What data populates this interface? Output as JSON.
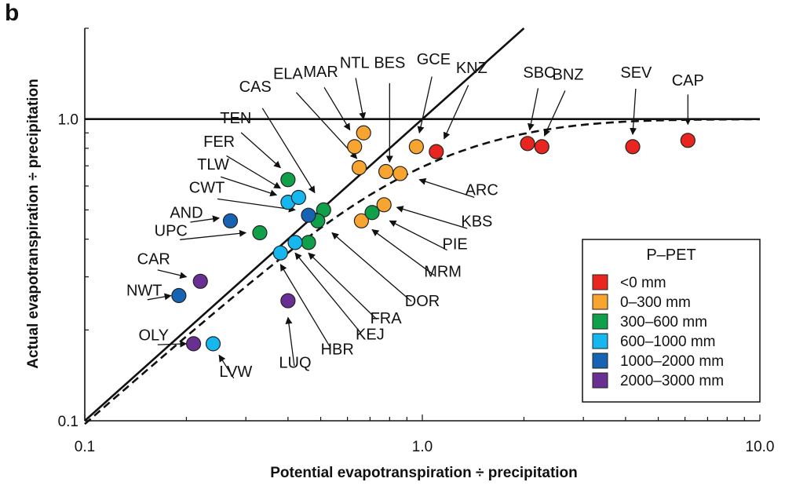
{
  "panel_label": "b",
  "colors": {
    "<0 mm": "#e8251f",
    "0–300 mm": "#f7a431",
    "300–600 mm": "#11a04a",
    "600–1000 mm": "#16b7ee",
    "1000–2000 mm": "#1763b3",
    "2000–3000 mm": "#6a2f93"
  },
  "chart_data": {
    "type": "scatter",
    "xlabel": "Potential evapotranspiration ÷ precipitation",
    "ylabel": "Actual evapotranspiration ÷ precipitation",
    "xscale": "log",
    "yscale": "log",
    "xlim": [
      0.1,
      10.0
    ],
    "ylim": [
      0.1,
      2.0
    ],
    "xticks": [
      "0.1",
      "1.0",
      "10.0"
    ],
    "yticks": [
      "0.1",
      "1.0"
    ],
    "legend_title": "P–PET",
    "legend_position": "bottom-right",
    "legend": [
      "<0 mm",
      "0–300 mm",
      "300–600 mm",
      "600–1000 mm",
      "1000–2000 mm",
      "2000–3000 mm"
    ],
    "reference_lines": [
      {
        "name": "1:1 line",
        "style": "solid"
      },
      {
        "name": "y = 1.0",
        "style": "solid"
      },
      {
        "name": "Budyko curve",
        "style": "dashed"
      }
    ],
    "points": [
      {
        "x": 6.12,
        "y": 0.85,
        "group": "<0 mm"
      },
      {
        "x": 4.2,
        "y": 0.81,
        "group": "<0 mm"
      },
      {
        "x": 2.26,
        "y": 0.81,
        "group": "<0 mm"
      },
      {
        "x": 2.05,
        "y": 0.83,
        "group": "<0 mm"
      },
      {
        "x": 1.1,
        "y": 0.78,
        "group": "<0 mm"
      },
      {
        "x": 0.63,
        "y": 0.81,
        "group": "0–300 mm"
      },
      {
        "x": 0.67,
        "y": 0.9,
        "group": "0–300 mm"
      },
      {
        "x": 0.96,
        "y": 0.81,
        "group": "0–300 mm"
      },
      {
        "x": 0.65,
        "y": 0.69,
        "group": "0–300 mm"
      },
      {
        "x": 0.78,
        "y": 0.67,
        "group": "0–300 mm"
      },
      {
        "x": 0.86,
        "y": 0.66,
        "group": "0–300 mm"
      },
      {
        "x": 0.77,
        "y": 0.52,
        "group": "0–300 mm"
      },
      {
        "x": 0.66,
        "y": 0.46,
        "group": "0–300 mm"
      },
      {
        "x": 0.4,
        "y": 0.63,
        "group": "300–600 mm"
      },
      {
        "x": 0.51,
        "y": 0.5,
        "group": "300–600 mm"
      },
      {
        "x": 0.49,
        "y": 0.46,
        "group": "300–600 mm"
      },
      {
        "x": 0.71,
        "y": 0.49,
        "group": "300–600 mm"
      },
      {
        "x": 0.33,
        "y": 0.42,
        "group": "300–600 mm"
      },
      {
        "x": 0.46,
        "y": 0.39,
        "group": "300–600 mm"
      },
      {
        "x": 0.4,
        "y": 0.53,
        "group": "600–1000 mm"
      },
      {
        "x": 0.43,
        "y": 0.55,
        "group": "600–1000 mm"
      },
      {
        "x": 0.42,
        "y": 0.39,
        "group": "600–1000 mm"
      },
      {
        "x": 0.38,
        "y": 0.36,
        "group": "600–1000 mm"
      },
      {
        "x": 0.24,
        "y": 0.18,
        "group": "600–1000 mm"
      },
      {
        "x": 0.27,
        "y": 0.46,
        "group": "1000–2000 mm"
      },
      {
        "x": 0.46,
        "y": 0.48,
        "group": "1000–2000 mm"
      },
      {
        "x": 0.19,
        "y": 0.26,
        "group": "1000–2000 mm"
      },
      {
        "x": 0.22,
        "y": 0.29,
        "group": "2000–3000 mm"
      },
      {
        "x": 0.4,
        "y": 0.25,
        "group": "2000–3000 mm"
      },
      {
        "x": 0.21,
        "y": 0.18,
        "group": "2000–3000 mm"
      }
    ],
    "annotations": [
      {
        "label": "CAP",
        "text_x": 6.12,
        "text_y": 1.29,
        "arrow_x": 6.12,
        "arrow_y": 0.96
      },
      {
        "label": "SEV",
        "text_x": 4.3,
        "text_y": 1.37,
        "arrow_x": 4.2,
        "arrow_y": 0.89
      },
      {
        "label": "BNZ",
        "text_x": 2.7,
        "text_y": 1.35,
        "arrow_x": 2.3,
        "arrow_y": 0.88
      },
      {
        "label": "SBC",
        "text_x": 2.22,
        "text_y": 1.37,
        "arrow_x": 2.08,
        "arrow_y": 0.92
      },
      {
        "label": "KNZ",
        "text_x": 1.4,
        "text_y": 1.42,
        "arrow_x": 1.16,
        "arrow_y": 0.86
      },
      {
        "label": "GCE",
        "text_x": 1.08,
        "text_y": 1.52,
        "arrow_x": 0.98,
        "arrow_y": 0.9
      },
      {
        "label": "BES",
        "text_x": 0.8,
        "text_y": 1.48,
        "arrow_x": 0.8,
        "arrow_y": 0.72
      },
      {
        "label": "NTL",
        "text_x": 0.63,
        "text_y": 1.48,
        "arrow_x": 0.67,
        "arrow_y": 1.0
      },
      {
        "label": "MAR",
        "text_x": 0.5,
        "text_y": 1.38,
        "arrow_x": 0.61,
        "arrow_y": 0.92
      },
      {
        "label": "ELA",
        "text_x": 0.4,
        "text_y": 1.36,
        "arrow_x": 0.64,
        "arrow_y": 0.74
      },
      {
        "label": "CAS",
        "text_x": 0.32,
        "text_y": 1.23,
        "arrow_x": 0.48,
        "arrow_y": 0.57
      },
      {
        "label": "TEN",
        "text_x": 0.28,
        "text_y": 0.97,
        "arrow_x": 0.38,
        "arrow_y": 0.69
      },
      {
        "label": "FER",
        "text_x": 0.25,
        "text_y": 0.81,
        "arrow_x": 0.38,
        "arrow_y": 0.59
      },
      {
        "label": "TLW",
        "text_x": 0.24,
        "text_y": 0.68,
        "arrow_x": 0.37,
        "arrow_y": 0.56
      },
      {
        "label": "CWT",
        "text_x": 0.23,
        "text_y": 0.57,
        "arrow_x": 0.42,
        "arrow_y": 0.5
      },
      {
        "label": "AND",
        "text_x": 0.2,
        "text_y": 0.47,
        "arrow_x": 0.25,
        "arrow_y": 0.47
      },
      {
        "label": "UPC",
        "text_x": 0.18,
        "text_y": 0.41,
        "arrow_x": 0.3,
        "arrow_y": 0.42
      },
      {
        "label": "CAR",
        "text_x": 0.16,
        "text_y": 0.33,
        "arrow_x": 0.2,
        "arrow_y": 0.3
      },
      {
        "label": "NWT",
        "text_x": 0.15,
        "text_y": 0.26,
        "arrow_x": 0.18,
        "arrow_y": 0.26
      },
      {
        "label": "OLY",
        "text_x": 0.16,
        "text_y": 0.185,
        "arrow_x": 0.2,
        "arrow_y": 0.18
      },
      {
        "label": "LVW",
        "text_x": 0.28,
        "text_y": 0.14,
        "arrow_x": 0.25,
        "arrow_y": 0.165
      },
      {
        "label": "LUQ",
        "text_x": 0.42,
        "text_y": 0.15,
        "arrow_x": 0.4,
        "arrow_y": 0.22
      },
      {
        "label": "HBR",
        "text_x": 0.56,
        "text_y": 0.166,
        "arrow_x": 0.38,
        "arrow_y": 0.33
      },
      {
        "label": "KEJ",
        "text_x": 0.7,
        "text_y": 0.186,
        "arrow_x": 0.42,
        "arrow_y": 0.36
      },
      {
        "label": "FRA",
        "text_x": 0.78,
        "text_y": 0.21,
        "arrow_x": 0.46,
        "arrow_y": 0.36
      },
      {
        "label": "DOR",
        "text_x": 1.0,
        "text_y": 0.24,
        "arrow_x": 0.54,
        "arrow_y": 0.42
      },
      {
        "label": "MRM",
        "text_x": 1.15,
        "text_y": 0.3,
        "arrow_x": 0.71,
        "arrow_y": 0.43
      },
      {
        "label": "PIE",
        "text_x": 1.25,
        "text_y": 0.37,
        "arrow_x": 0.8,
        "arrow_y": 0.46
      },
      {
        "label": "KBS",
        "text_x": 1.45,
        "text_y": 0.44,
        "arrow_x": 0.84,
        "arrow_y": 0.51
      },
      {
        "label": "ARC",
        "text_x": 1.5,
        "text_y": 0.56,
        "arrow_x": 0.98,
        "arrow_y": 0.63
      }
    ]
  }
}
